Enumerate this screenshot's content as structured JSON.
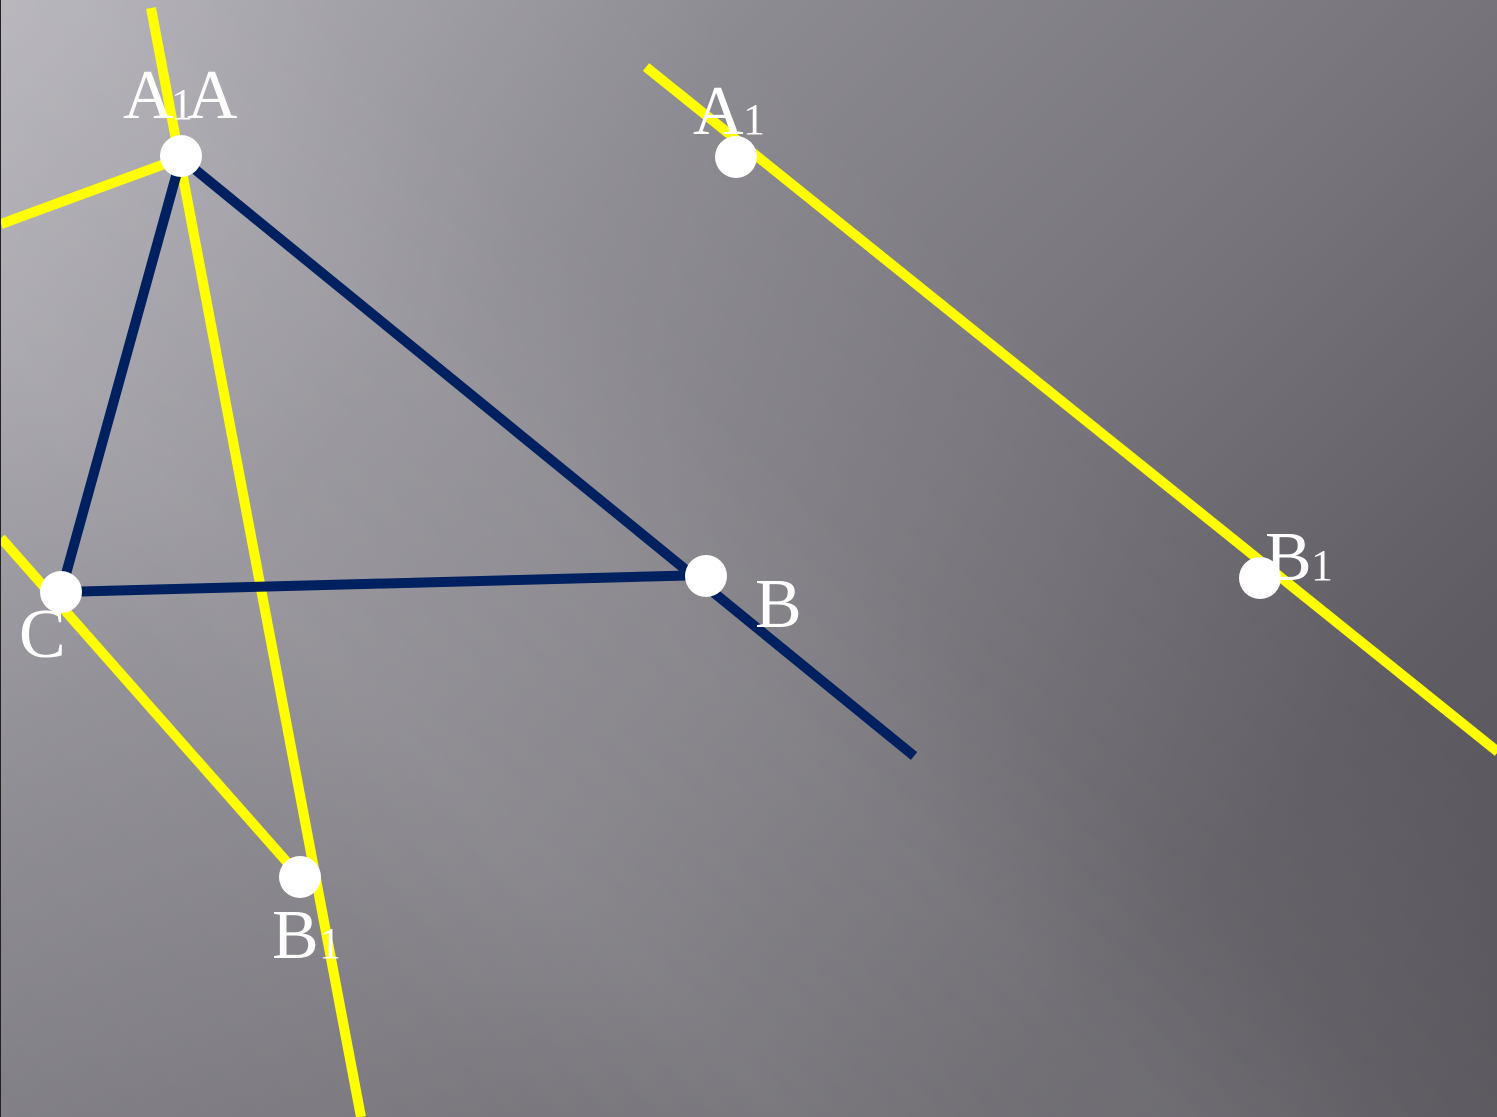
{
  "labels": {
    "A": "A",
    "A1_left": "A",
    "A1_left_sub": "1",
    "A1_right": "A",
    "A1_right_sub": "1",
    "B": "B",
    "B1_right": "B",
    "B1_right_sub": "1",
    "B1_bottom": "B",
    "B1_bottom_sub": "1",
    "C": "C"
  },
  "colors": {
    "axis_lines": "#ffff00",
    "triangle": "#00205f",
    "points": "#ffffff",
    "labels": "#ffffff"
  }
}
